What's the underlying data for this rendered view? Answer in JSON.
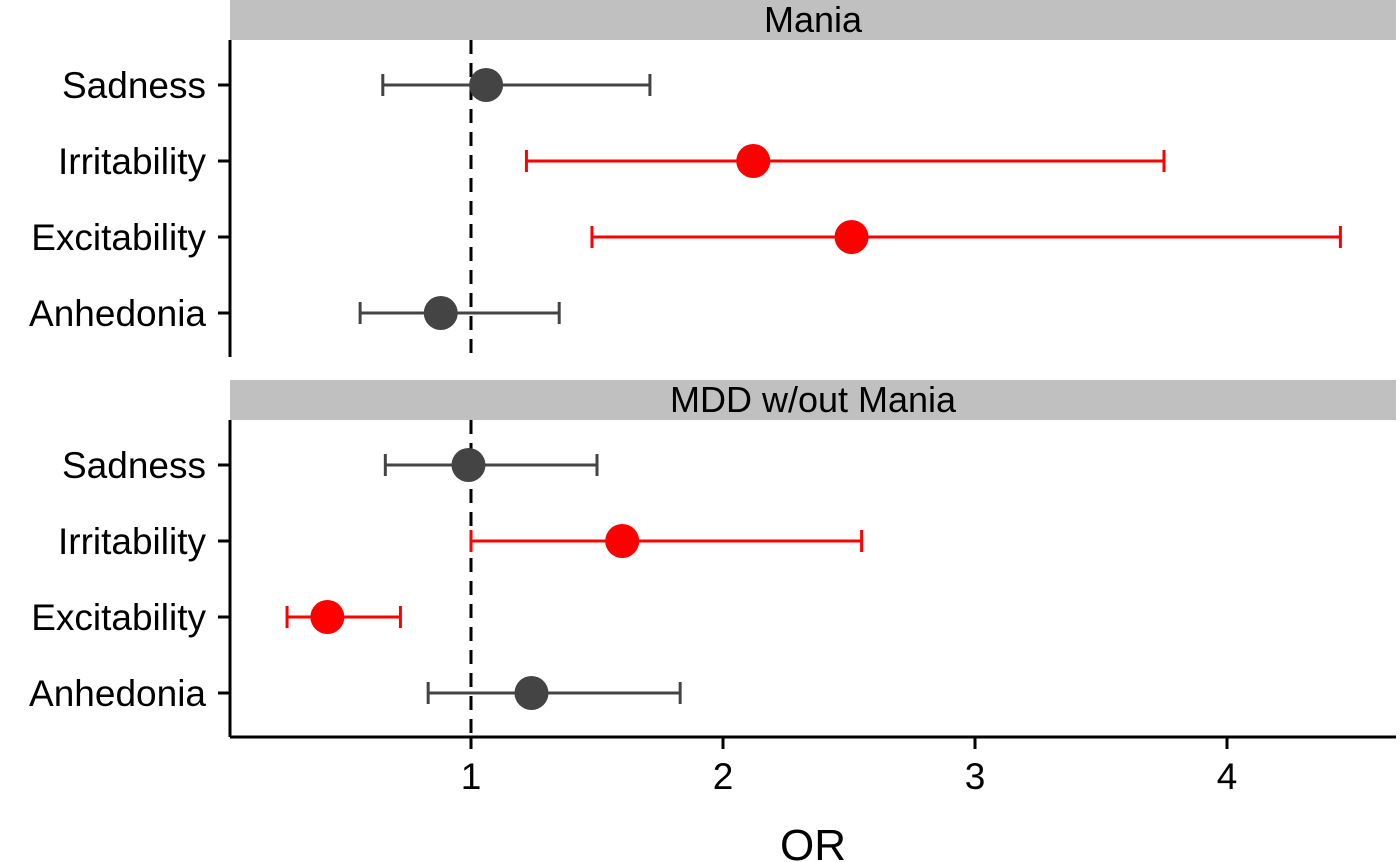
{
  "chart_data": {
    "type": "forest",
    "xlabel": "OR",
    "x_ticks": [
      1,
      2,
      3,
      4
    ],
    "xlim": [
      0.05,
      4.65
    ],
    "reference_line": 1,
    "colors": {
      "significant": "#ff0000",
      "not_significant": "#444444",
      "strip": "#c0c0c0"
    },
    "panels": [
      {
        "title": "Mania",
        "rows": [
          {
            "label": "Sadness",
            "or": 1.06,
            "lower": 0.65,
            "upper": 1.71,
            "significant": false
          },
          {
            "label": "Irritability",
            "or": 2.12,
            "lower": 1.22,
            "upper": 3.75,
            "significant": true
          },
          {
            "label": "Excitability",
            "or": 2.51,
            "lower": 1.48,
            "upper": 4.45,
            "significant": true
          },
          {
            "label": "Anhedonia",
            "or": 0.88,
            "lower": 0.56,
            "upper": 1.35,
            "significant": false
          }
        ]
      },
      {
        "title": "MDD w/out Mania",
        "rows": [
          {
            "label": "Sadness",
            "or": 0.99,
            "lower": 0.66,
            "upper": 1.5,
            "significant": false
          },
          {
            "label": "Irritability",
            "or": 1.6,
            "lower": 1.0,
            "upper": 2.55,
            "significant": true
          },
          {
            "label": "Excitability",
            "or": 0.43,
            "lower": 0.27,
            "upper": 0.72,
            "significant": true
          },
          {
            "label": "Anhedonia",
            "or": 1.24,
            "lower": 0.83,
            "upper": 1.83,
            "significant": false
          }
        ]
      }
    ]
  }
}
